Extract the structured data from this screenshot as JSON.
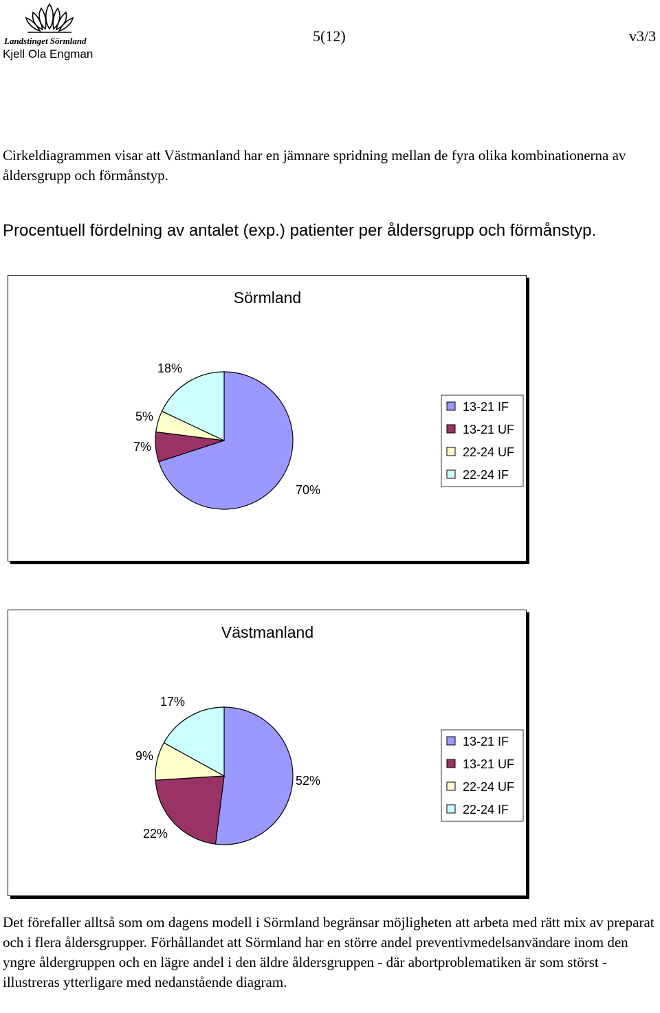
{
  "header": {
    "logo_text": "Landstinget Sörmland",
    "author": "Kjell Ola Engman",
    "page": "5(12)",
    "version": "v3/3"
  },
  "intro_text": "Cirkeldiagrammen visar att Västmanland har en jämnare spridning mellan de fyra olika kombinationerna av åldersgrupp och förmånstyp.",
  "section_heading": "Procentuell fördelning av antalet (exp.) patienter per åldersgrupp och förmånstyp.",
  "chart_data": [
    {
      "type": "pie",
      "title": "Sörmland",
      "categories": [
        "13-21 IF",
        "13-21 UF",
        "22-24 UF",
        "22-24 IF"
      ],
      "values": [
        70,
        7,
        5,
        18
      ],
      "labels": [
        "70%",
        "7%",
        "5%",
        "18%"
      ],
      "colors": [
        "#9999ff",
        "#993366",
        "#ffffcc",
        "#ccffff"
      ],
      "legend": "right"
    },
    {
      "type": "pie",
      "title": "Västmanland",
      "categories": [
        "13-21 IF",
        "13-21 UF",
        "22-24 UF",
        "22-24 IF"
      ],
      "values": [
        52,
        22,
        9,
        17
      ],
      "labels": [
        "52%",
        "22%",
        "9%",
        "17%"
      ],
      "colors": [
        "#9999ff",
        "#993366",
        "#ffffcc",
        "#ccffff"
      ],
      "legend": "right"
    }
  ],
  "outro_text": "Det förefaller alltså som om dagens modell i Sörmland begränsar möjligheten att arbeta med rätt mix av preparat och i flera åldersgrupper. Förhållandet att Sörmland har en större andel preventivmedelsanvändare inom den yngre åldergruppen och en lägre andel i den äldre åldersgruppen - där abortproblematiken är som störst - illustreras ytterligare med nedanstående diagram."
}
